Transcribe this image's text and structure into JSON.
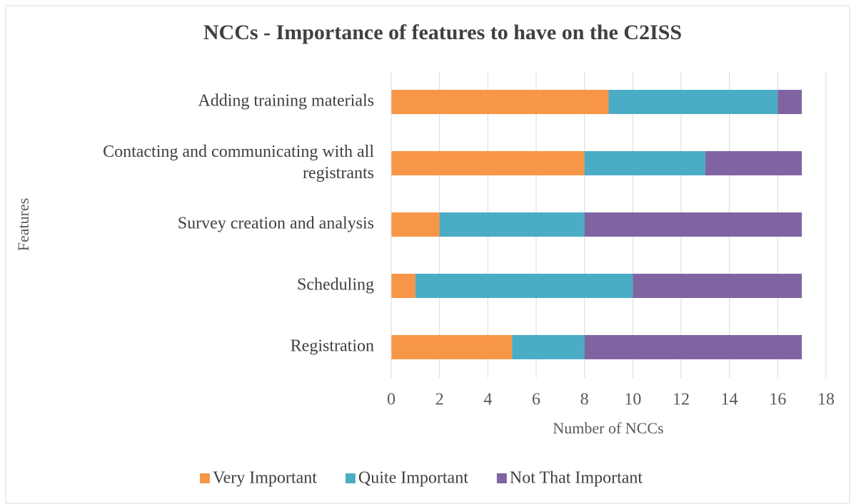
{
  "chart_data": {
    "type": "stacked_bar_horizontal",
    "title": "NCCs - Importance of features to have on the C2ISS",
    "categories": [
      "Adding training materials",
      "Contacting and communicating with all registrants",
      "Survey creation and analysis",
      "Scheduling",
      "Registration"
    ],
    "series": [
      {
        "name": "Very Important",
        "color": "#F79646",
        "values": [
          9,
          8,
          2,
          1,
          5
        ]
      },
      {
        "name": "Quite Important",
        "color": "#4BACC6",
        "values": [
          7,
          5,
          6,
          9,
          3
        ]
      },
      {
        "name": "Not That Important",
        "color": "#8064A2",
        "values": [
          1,
          4,
          9,
          7,
          9
        ]
      }
    ],
    "xlim": [
      0,
      18
    ],
    "xticks": [
      0,
      2,
      4,
      6,
      8,
      10,
      12,
      14,
      16,
      18
    ],
    "xlabel": "Number of NCCs",
    "ylabel": "Features",
    "grid": true,
    "legend": "bottom"
  }
}
